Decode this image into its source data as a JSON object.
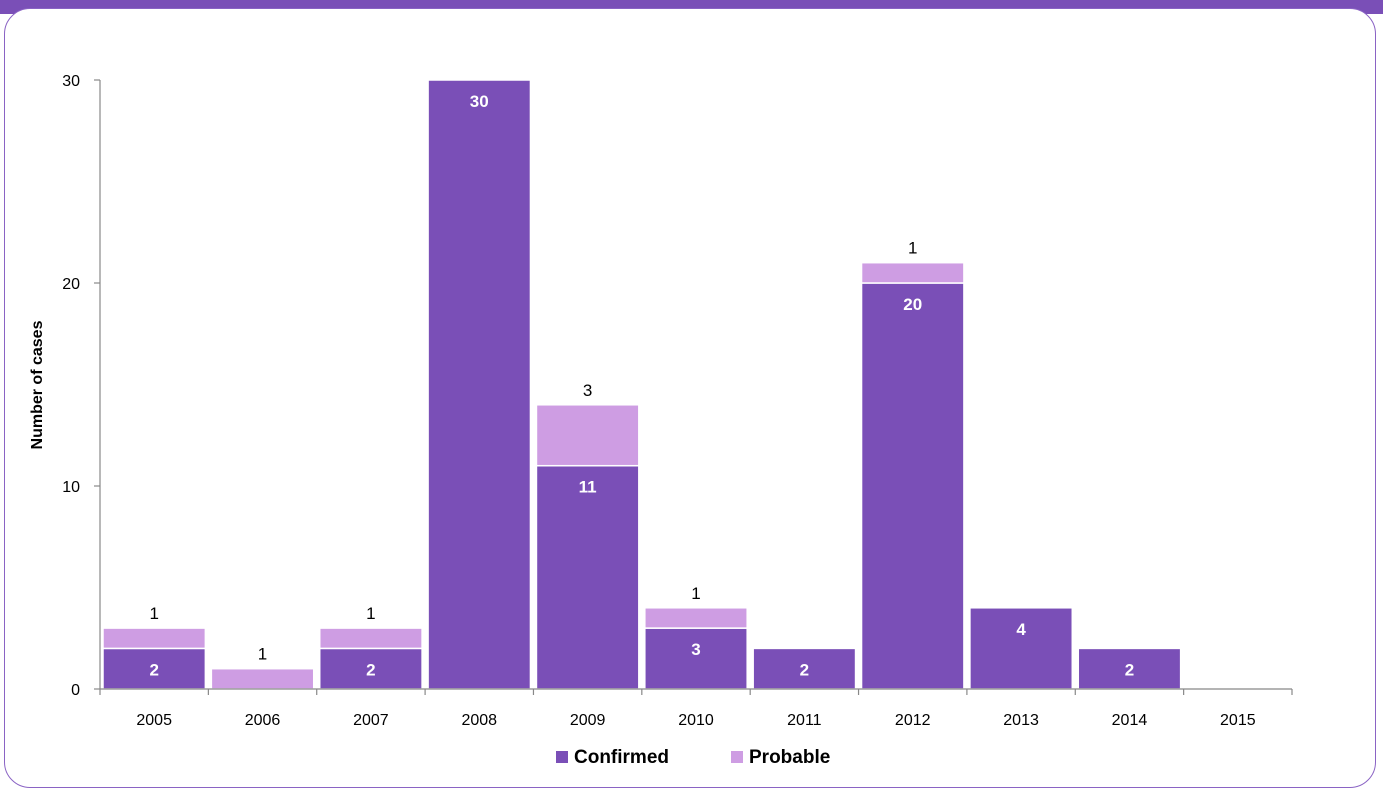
{
  "colors": {
    "confirmed": "#7a4fb7",
    "probable": "#ce9de3",
    "frame": "#7a4fb7",
    "axis": "#888888"
  },
  "chart_data": {
    "type": "bar",
    "stacked": true,
    "categories": [
      "2005",
      "2006",
      "2007",
      "2008",
      "2009",
      "2010",
      "2011",
      "2012",
      "2013",
      "2014",
      "2015"
    ],
    "series": [
      {
        "name": "Confirmed",
        "values": [
          2,
          0,
          2,
          30,
          11,
          3,
          2,
          20,
          4,
          2,
          0
        ]
      },
      {
        "name": "Probable",
        "values": [
          1,
          1,
          1,
          0,
          3,
          1,
          0,
          1,
          0,
          0,
          0
        ]
      }
    ],
    "title": "",
    "xlabel": "",
    "ylabel": "Number of cases",
    "ylim": [
      0,
      30
    ],
    "yticks": [
      "0",
      "10",
      "20",
      "30"
    ],
    "legend_position": "bottom",
    "grid": false
  }
}
